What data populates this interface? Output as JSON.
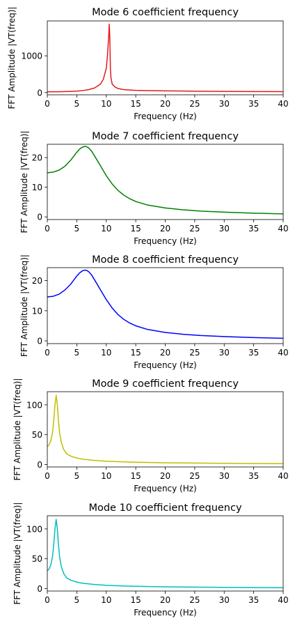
{
  "chart_data": [
    {
      "type": "line",
      "title": "Mode 6 coefficient frequency",
      "xlabel": "Frequency (Hz)",
      "ylabel": "FFT Amplitude |VT(freq)|",
      "xlim": [
        0,
        40
      ],
      "ylim": [
        -60,
        1950
      ],
      "xticks": [
        0,
        5,
        10,
        15,
        20,
        25,
        30,
        35,
        40
      ],
      "yticks": [
        0,
        1000
      ],
      "color": "#e41a1c",
      "x": [
        0,
        1,
        2,
        3,
        4,
        5,
        6,
        7,
        8,
        9,
        9.5,
        10,
        10.2,
        10.4,
        10.5,
        10.6,
        10.7,
        10.8,
        11,
        11.5,
        12,
        13,
        15,
        17,
        20,
        25,
        30,
        35,
        40
      ],
      "y": [
        20,
        22,
        24,
        27,
        32,
        40,
        55,
        80,
        125,
        230,
        360,
        660,
        1000,
        1500,
        1860,
        1500,
        650,
        400,
        230,
        150,
        110,
        80,
        62,
        55,
        47,
        38,
        32,
        28,
        25
      ]
    },
    {
      "type": "line",
      "title": "Mode 7 coefficient frequency",
      "xlabel": "Frequency (Hz)",
      "ylabel": "FFT Amplitude |VT(freq)|",
      "xlim": [
        0,
        40
      ],
      "ylim": [
        -0.9,
        24.5
      ],
      "xticks": [
        0,
        5,
        10,
        15,
        20,
        25,
        30,
        35,
        40
      ],
      "yticks": [
        0,
        10,
        20
      ],
      "color": "#008000",
      "x": [
        0,
        1,
        2,
        3,
        4,
        5,
        5.5,
        6,
        6.5,
        7,
        7.5,
        8,
        9,
        10,
        11,
        12,
        13,
        14,
        15,
        17,
        20,
        23,
        26,
        30,
        35,
        40
      ],
      "y": [
        14.9,
        15.1,
        15.8,
        17.1,
        19.2,
        21.8,
        22.9,
        23.6,
        23.8,
        23.3,
        22.2,
        20.6,
        17.3,
        13.9,
        11.1,
        8.9,
        7.3,
        6.1,
        5.2,
        4.0,
        3.0,
        2.4,
        1.95,
        1.6,
        1.25,
        1.0
      ]
    },
    {
      "type": "line",
      "title": "Mode 8 coefficient frequency",
      "xlabel": "Frequency (Hz)",
      "ylabel": "FFT Amplitude |VT(freq)|",
      "xlim": [
        0,
        40
      ],
      "ylim": [
        -0.9,
        24.3
      ],
      "xticks": [
        0,
        5,
        10,
        15,
        20,
        25,
        30,
        35,
        40
      ],
      "yticks": [
        0,
        10,
        20
      ],
      "color": "#0000ff",
      "x": [
        0,
        1,
        2,
        3,
        4,
        5,
        5.5,
        6,
        6.5,
        7,
        7.5,
        8,
        9,
        10,
        11,
        12,
        13,
        14,
        15,
        17,
        20,
        23,
        26,
        30,
        35,
        40
      ],
      "y": [
        14.6,
        14.8,
        15.5,
        16.9,
        18.9,
        21.5,
        22.6,
        23.3,
        23.5,
        23.0,
        21.9,
        20.3,
        17.0,
        13.7,
        10.9,
        8.7,
        7.1,
        5.9,
        5.0,
        3.8,
        2.8,
        2.2,
        1.8,
        1.45,
        1.1,
        0.85
      ]
    },
    {
      "type": "line",
      "title": "Mode 9 coefficient frequency",
      "xlabel": "Frequency (Hz)",
      "ylabel": "FFT Amplitude |VT(freq)|",
      "xlim": [
        0,
        40
      ],
      "ylim": [
        -4,
        122
      ],
      "xticks": [
        0,
        5,
        10,
        15,
        20,
        25,
        30,
        35,
        40
      ],
      "yticks": [
        0,
        50,
        100
      ],
      "color": "#bfbf00",
      "x": [
        0,
        0.3,
        0.6,
        0.9,
        1.1,
        1.3,
        1.5,
        1.7,
        1.9,
        2.1,
        2.4,
        2.8,
        3.3,
        4,
        5,
        6,
        8,
        10,
        13,
        16,
        20,
        25,
        30,
        35,
        40
      ],
      "y": [
        30,
        33,
        40,
        55,
        75,
        100,
        116,
        100,
        72,
        52,
        36,
        25,
        18,
        14,
        11,
        9,
        7,
        5.6,
        4.4,
        3.7,
        3.0,
        2.5,
        2.1,
        1.8,
        1.5
      ]
    },
    {
      "type": "line",
      "title": "Mode 10 coefficient frequency",
      "xlabel": "Frequency (Hz)",
      "ylabel": "FFT Amplitude |VT(freq)|",
      "xlim": [
        0,
        40
      ],
      "ylim": [
        -4,
        122
      ],
      "xticks": [
        0,
        5,
        10,
        15,
        20,
        25,
        30,
        35,
        40
      ],
      "yticks": [
        0,
        50,
        100
      ],
      "color": "#00bfbf",
      "x": [
        0,
        0.3,
        0.6,
        0.9,
        1.1,
        1.3,
        1.5,
        1.7,
        1.9,
        2.1,
        2.4,
        2.8,
        3.3,
        4,
        5,
        6,
        8,
        10,
        13,
        16,
        20,
        25,
        30,
        35,
        40
      ],
      "y": [
        30,
        33,
        40,
        55,
        75,
        100,
        116,
        100,
        72,
        52,
        36,
        25,
        18,
        14,
        11,
        9,
        7,
        5.6,
        4.4,
        3.7,
        3.0,
        2.5,
        2.1,
        1.8,
        1.5
      ]
    }
  ]
}
